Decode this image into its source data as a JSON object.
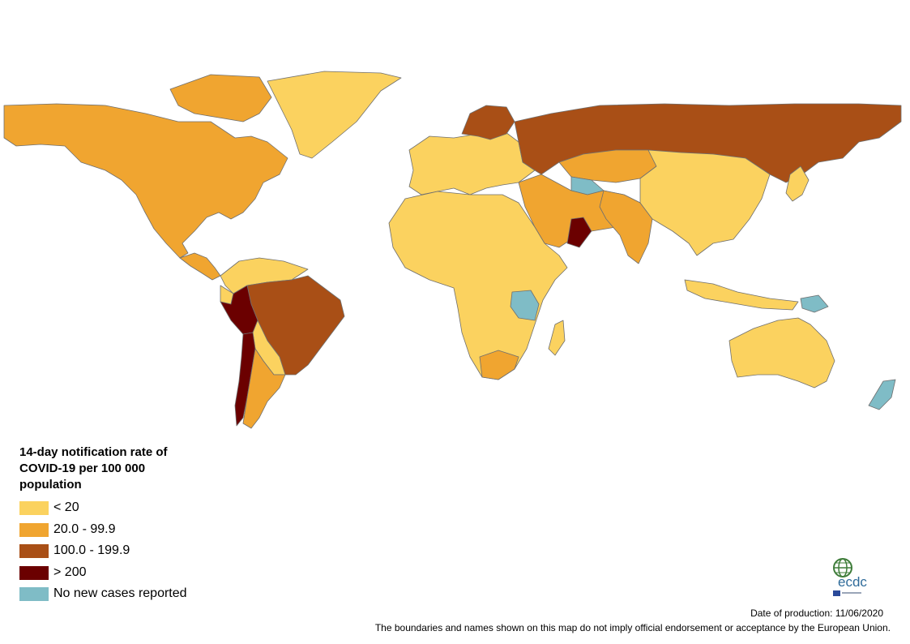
{
  "legend": {
    "title_line1": "14-day notification rate of",
    "title_line2": "COVID-19 per 100 000",
    "title_line3": "population",
    "items": [
      {
        "label": "< 20",
        "color": "#fbd25f"
      },
      {
        "label": "20.0 - 99.9",
        "color": "#f0a530"
      },
      {
        "label": "100.0 - 199.9",
        "color": "#a94f16"
      },
      {
        "label": "> 200",
        "color": "#6b0000"
      },
      {
        "label": "No new cases reported",
        "color": "#7fbcc6"
      }
    ]
  },
  "logo": {
    "text": "ecdc",
    "icon": "ecdc-globe-logo"
  },
  "footer": {
    "date": "Date of production: 11/06/2020",
    "disclaimer": "The boundaries and names shown on this map do not imply official endorsement or acceptance by the European Union."
  },
  "map": {
    "categories": {
      "north_america": "20.0 - 99.9",
      "greenland": "< 20",
      "central_america": "20.0 - 99.9",
      "colombia_venezuela": "< 20",
      "brazil": "100.0 - 199.9",
      "peru": "> 200",
      "chile": "> 200",
      "argentina": "20.0 - 99.9",
      "bolivia_paraguay": "< 20",
      "europe": "< 20",
      "scandinavia": "100.0 - 199.9",
      "russia": "100.0 - 199.9",
      "kazakhstan": "20.0 - 99.9",
      "middle_east": "20.0 - 99.9",
      "oman": "> 200",
      "africa": "< 20",
      "south_africa": "20.0 - 99.9",
      "tanzania": "No new cases reported",
      "asia": "< 20",
      "india_region": "20.0 - 99.9",
      "australia": "< 20",
      "new_zealand": "No new cases reported",
      "papua_new_guinea": "No new cases reported",
      "turkmenistan": "No new cases reported"
    }
  }
}
